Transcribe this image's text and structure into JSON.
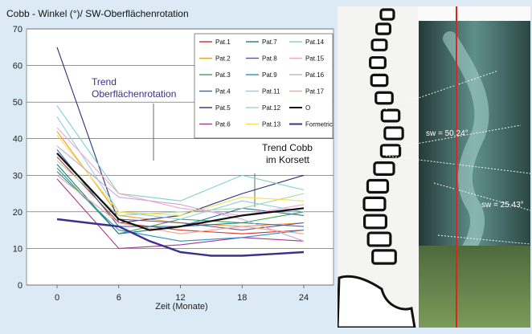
{
  "chart_data": {
    "type": "line",
    "title": "Cobb - Winkel (°)/ SW-Oberflächenrotation",
    "xlabel": "Zeit (Monate)",
    "ylabel": "",
    "x": [
      0,
      6,
      12,
      18,
      24
    ],
    "xticks": [
      "0",
      "6",
      "12",
      "18",
      "24"
    ],
    "ylim": [
      0,
      70
    ],
    "yticks": [
      "0",
      "10",
      "20",
      "30",
      "40",
      "50",
      "60",
      "70"
    ],
    "grid": "horizontal",
    "legend_position": "top-right",
    "series": [
      {
        "name": "Pat.1",
        "color": "#d6312a",
        "x": [
          0,
          6,
          12,
          18,
          24
        ],
        "values": [
          35,
          17,
          15,
          14,
          15
        ]
      },
      {
        "name": "Pat.2",
        "color": "#f39c34",
        "x": [
          0,
          6,
          12,
          18,
          24
        ],
        "values": [
          42,
          19,
          17,
          16,
          17
        ]
      },
      {
        "name": "Pat.3",
        "color": "#3aa548",
        "x": [
          0,
          6,
          12,
          18,
          24
        ],
        "values": [
          32,
          14,
          18,
          17,
          20
        ]
      },
      {
        "name": "Pat.4",
        "color": "#2c6fb0",
        "x": [
          0,
          6,
          12,
          18,
          24
        ],
        "values": [
          37,
          16,
          16,
          21,
          19
        ]
      },
      {
        "name": "Pat.5",
        "color": "#2a2f7a",
        "x": [
          0,
          6,
          12,
          18,
          24
        ],
        "values": [
          65,
          17,
          19,
          25,
          30
        ]
      },
      {
        "name": "Pat.6",
        "color": "#a23a8e",
        "x": [
          0,
          6,
          12,
          18,
          24
        ],
        "values": [
          29,
          10,
          11,
          13,
          12
        ]
      },
      {
        "name": "Pat.7",
        "color": "#1f7c8c",
        "x": [
          0,
          6,
          12,
          18,
          24
        ],
        "values": [
          33,
          14,
          16,
          17,
          16
        ]
      },
      {
        "name": "Pat.8",
        "color": "#6a4c9c",
        "x": [
          0,
          6,
          12,
          18,
          24
        ],
        "values": [
          36,
          18,
          17,
          15,
          17
        ]
      },
      {
        "name": "Pat.9",
        "color": "#2a8ed1",
        "x": [
          0,
          6,
          12,
          18,
          24
        ],
        "values": [
          31,
          15,
          12,
          13,
          15
        ]
      },
      {
        "name": "Pat.11",
        "color": "#8fcfe0",
        "x": [
          0,
          6,
          12,
          18,
          24
        ],
        "values": [
          46,
          20,
          18,
          23,
          20
        ]
      },
      {
        "name": "Pat.12",
        "color": "#9ed9a8",
        "x": [
          0,
          6,
          12,
          18,
          24
        ],
        "values": [
          34,
          19,
          20,
          21,
          25
        ]
      },
      {
        "name": "Pat.13",
        "color": "#f4e04d",
        "x": [
          0,
          6,
          12,
          18,
          24
        ],
        "values": [
          41,
          20,
          19,
          24,
          23
        ]
      },
      {
        "name": "Pat.14",
        "color": "#7fd3c2",
        "x": [
          0,
          6,
          12,
          18,
          24
        ],
        "values": [
          49,
          25,
          23,
          30,
          26
        ]
      },
      {
        "name": "Pat.15",
        "color": "#f5a6c8",
        "x": [
          0,
          6,
          12,
          18,
          24
        ],
        "values": [
          43,
          25,
          21,
          19,
          22
        ]
      },
      {
        "name": "Pat.16",
        "color": "#c9a9dd",
        "x": [
          0,
          6,
          12,
          18,
          24
        ],
        "values": [
          38,
          24,
          22,
          18,
          12
        ]
      },
      {
        "name": "Pat.17",
        "color": "#f1a38c",
        "x": [
          0,
          6,
          12,
          18,
          24
        ],
        "values": [
          30,
          17,
          14,
          16,
          14
        ]
      },
      {
        "name": "O",
        "color": "#111111",
        "width": 2.2,
        "x": [
          0,
          6,
          9,
          12,
          15,
          18,
          21,
          24
        ],
        "values": [
          36,
          18,
          15,
          16,
          17.5,
          19,
          20,
          21
        ]
      },
      {
        "name": "Formetric",
        "color": "#3b2f8f",
        "width": 2.4,
        "x": [
          0,
          6,
          9,
          12,
          15,
          18,
          21,
          24
        ],
        "values": [
          18,
          16,
          12,
          9,
          8,
          8,
          8.5,
          9
        ]
      }
    ],
    "annotations": [
      {
        "text": "Trend",
        "color": "#3b2f8f"
      },
      {
        "text": "Oberflächenrotation",
        "color": "#3b2f8f"
      },
      {
        "text": "Trend Cobb",
        "color": "#111111"
      },
      {
        "text": "im Korsett",
        "color": "#111111"
      }
    ]
  },
  "image_panel": {
    "measurements": [
      "sw = 50.24°",
      "sw = 25.43°"
    ],
    "line_color": "#e0231c"
  }
}
